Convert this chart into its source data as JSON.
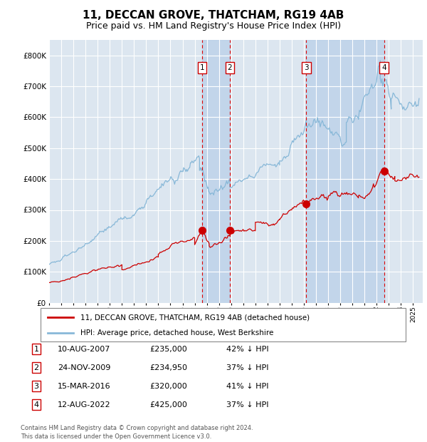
{
  "title": "11, DECCAN GROVE, THATCHAM, RG19 4AB",
  "subtitle": "Price paid vs. HM Land Registry's House Price Index (HPI)",
  "title_fontsize": 11,
  "subtitle_fontsize": 9,
  "background_color": "#ffffff",
  "plot_bg_color": "#dce6f0",
  "grid_color": "#ffffff",
  "hpi_color": "#88b8d8",
  "price_color": "#cc0000",
  "ylim": [
    0,
    850000
  ],
  "yticks": [
    0,
    100000,
    200000,
    300000,
    400000,
    500000,
    600000,
    700000,
    800000
  ],
  "xlim_start": 1995.0,
  "xlim_end": 2025.8,
  "sale_dates": [
    2007.608,
    2009.899,
    2016.204,
    2022.608
  ],
  "sale_prices": [
    235000,
    234950,
    320000,
    425000
  ],
  "sale_labels": [
    "1",
    "2",
    "3",
    "4"
  ],
  "vline_pairs": [
    [
      2007.608,
      2009.899
    ],
    [
      2016.204,
      2022.608
    ]
  ],
  "legend_line1": "11, DECCAN GROVE, THATCHAM, RG19 4AB (detached house)",
  "legend_line2": "HPI: Average price, detached house, West Berkshire",
  "table_data": [
    [
      "1",
      "10-AUG-2007",
      "£235,000",
      "42% ↓ HPI"
    ],
    [
      "2",
      "24-NOV-2009",
      "£234,950",
      "37% ↓ HPI"
    ],
    [
      "3",
      "15-MAR-2016",
      "£320,000",
      "41% ↓ HPI"
    ],
    [
      "4",
      "12-AUG-2022",
      "£425,000",
      "37% ↓ HPI"
    ]
  ],
  "footer": "Contains HM Land Registry data © Crown copyright and database right 2024.\nThis data is licensed under the Open Government Licence v3.0."
}
